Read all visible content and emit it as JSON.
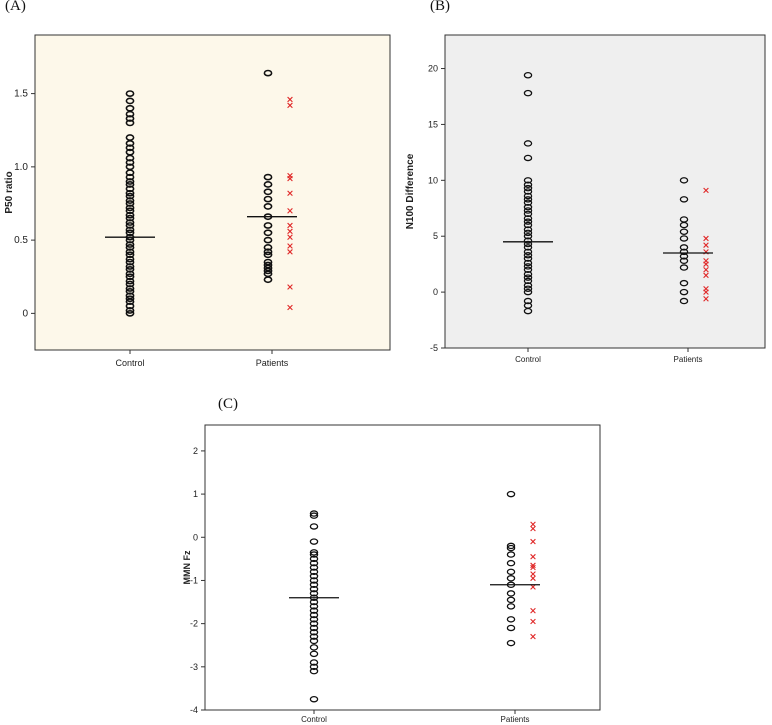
{
  "colors": {
    "control": "#111111",
    "patient_circle": "#111111",
    "patient_cross": "#e02828",
    "bgA": "#fdf8ea",
    "bgB": "#efefef",
    "bgC": "#ffffff"
  },
  "chart_data": [
    {
      "type": "scatter",
      "panel": "(A)",
      "ylabel": "P50 ratio",
      "categories": [
        "Control",
        "Patients"
      ],
      "ylim": [
        -0.25,
        1.9
      ],
      "yticks": [
        "0",
        "0.5",
        "1.0",
        "1.5"
      ],
      "ytick_values": [
        0,
        0.5,
        1.0,
        1.5
      ],
      "control_values": [
        0,
        0.02,
        0.05,
        0.08,
        0.1,
        0.12,
        0.15,
        0.17,
        0.2,
        0.22,
        0.25,
        0.27,
        0.3,
        0.32,
        0.35,
        0.37,
        0.4,
        0.42,
        0.45,
        0.47,
        0.5,
        0.52,
        0.55,
        0.57,
        0.6,
        0.62,
        0.65,
        0.67,
        0.7,
        0.72,
        0.75,
        0.77,
        0.8,
        0.82,
        0.85,
        0.88,
        0.9,
        0.93,
        0.96,
        1.0,
        1.03,
        1.06,
        1.1,
        1.13,
        1.16,
        1.2,
        1.3,
        1.33,
        1.36,
        1.4,
        1.45,
        1.5
      ],
      "control_median": 0.52,
      "patients_circles": [
        0.23,
        0.27,
        0.29,
        0.31,
        0.33,
        0.35,
        0.4,
        0.42,
        0.45,
        0.5,
        0.55,
        0.6,
        0.66,
        0.73,
        0.78,
        0.83,
        0.88,
        0.93,
        1.64
      ],
      "patients_crosses": [
        0.04,
        0.18,
        0.42,
        0.46,
        0.52,
        0.56,
        0.6,
        0.7,
        0.82,
        0.92,
        0.94,
        1.42,
        1.46
      ],
      "patients_median": 0.66
    },
    {
      "type": "scatter",
      "panel": "(B)",
      "ylabel": "N100 Difference",
      "categories": [
        "Control",
        "Patients"
      ],
      "ylim": [
        -5,
        23
      ],
      "yticks": [
        "-5",
        "0",
        "5",
        "10",
        "15",
        "20"
      ],
      "ytick_values": [
        -5,
        0,
        5,
        10,
        15,
        20
      ],
      "control_values": [
        -1.7,
        -1.2,
        -0.8,
        0,
        0.3,
        0.6,
        1,
        1.3,
        1.6,
        2,
        2.3,
        2.6,
        3,
        3.3,
        3.6,
        4,
        4.3,
        4.6,
        5,
        5.3,
        5.6,
        6,
        6.3,
        6.6,
        7,
        7.3,
        7.6,
        8,
        8.3,
        8.6,
        9,
        9.3,
        9.6,
        10,
        12,
        13.3,
        17.8,
        19.4
      ],
      "control_median": 4.5,
      "patients_circles": [
        -0.8,
        0,
        0.8,
        2.2,
        2.8,
        3.2,
        3.6,
        4,
        4.8,
        5.4,
        6,
        6.5,
        8.3,
        10
      ],
      "patients_crosses": [
        -0.6,
        0,
        0.3,
        1.5,
        2,
        2.5,
        2.8,
        3.6,
        4.2,
        4.8,
        9.1
      ],
      "patients_median": 3.5
    },
    {
      "type": "scatter",
      "panel": "(C)",
      "ylabel": "MMN Fz",
      "categories": [
        "Control",
        "Patients"
      ],
      "ylim": [
        -4,
        2.6
      ],
      "yticks": [
        "-4",
        "-3",
        "-2",
        "-1",
        "0",
        "1",
        "2"
      ],
      "ytick_values": [
        -4,
        -3,
        -2,
        -1,
        0,
        1,
        2
      ],
      "control_values": [
        -3.75,
        -3.1,
        -3,
        -2.9,
        -2.7,
        -2.55,
        -2.4,
        -2.3,
        -2.2,
        -2.1,
        -2,
        -1.9,
        -1.8,
        -1.7,
        -1.6,
        -1.5,
        -1.4,
        -1.3,
        -1.2,
        -1.1,
        -1,
        -0.9,
        -0.8,
        -0.7,
        -0.6,
        -0.5,
        -0.4,
        -0.35,
        -0.1,
        0.25,
        0.5,
        0.55
      ],
      "control_median": -1.4,
      "patients_circles": [
        -2.45,
        -2.1,
        -1.9,
        -1.6,
        -1.45,
        -1.3,
        -1.1,
        -0.95,
        -0.8,
        -0.6,
        -0.4,
        -0.25,
        -0.2,
        1.0
      ],
      "patients_crosses": [
        -2.3,
        -1.95,
        -1.7,
        -1.15,
        -0.95,
        -0.85,
        -0.7,
        -0.65,
        -0.45,
        -0.1,
        0.2,
        0.3
      ],
      "patients_median": -1.1
    }
  ]
}
